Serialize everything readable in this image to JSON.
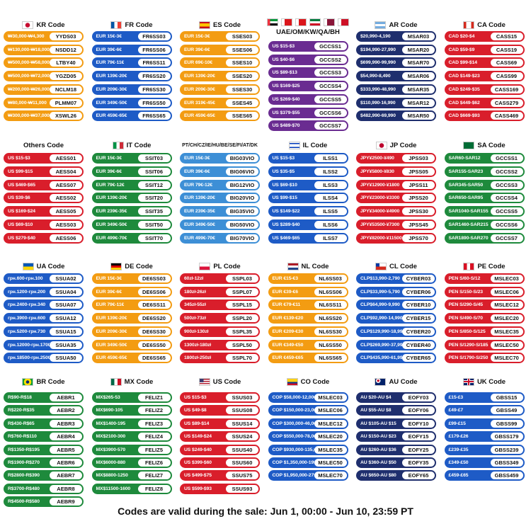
{
  "sections": [
    {
      "title": "KR Code",
      "color": "#f39c12",
      "items": [
        {
          "range": "₩30,000-₩4,300",
          "code": "YYDS03"
        },
        {
          "range": "₩130,000-₩18,000",
          "code": "NSDD12"
        },
        {
          "range": "₩500,000-₩58,000",
          "code": "LTBY40"
        },
        {
          "range": "₩500,000-₩72,000",
          "code": "YGZD05"
        },
        {
          "range": "₩200,000-₩26,000",
          "code": "NCLM18"
        },
        {
          "range": "₩80,000-₩11,000",
          "code": "PLMM07"
        },
        {
          "range": "₩300,000-₩37,000",
          "code": "XSWL26"
        }
      ]
    },
    {
      "title": "FR Code",
      "color": "#1e5bc6",
      "items": [
        {
          "range": "EUR 15€-3€",
          "code": "FR6SS03"
        },
        {
          "range": "EUR 39€-6€",
          "code": "FR6SS06"
        },
        {
          "range": "EUR 79€-11€",
          "code": "FR6SS11"
        },
        {
          "range": "EUR 139€-20€",
          "code": "FR6SS20"
        },
        {
          "range": "EUR 209€-30€",
          "code": "FR6SS30"
        },
        {
          "range": "EUR 349€-50€",
          "code": "FR6SS50"
        },
        {
          "range": "EUR 459€-65€",
          "code": "FR6SS65"
        }
      ]
    },
    {
      "title": "ES Code",
      "color": "#f39c12",
      "items": [
        {
          "range": "EUR 15€-3€",
          "code": "SSES03"
        },
        {
          "range": "EUR 39€-6€",
          "code": "SSES06"
        },
        {
          "range": "EUR 69€-10€",
          "code": "SSES10"
        },
        {
          "range": "EUR 139€-20€",
          "code": "SSES20"
        },
        {
          "range": "EUR 209€-30€",
          "code": "SSES30"
        },
        {
          "range": "EUR 319€-45€",
          "code": "SSES45"
        },
        {
          "range": "EUR 459€-65€",
          "code": "SSES65"
        }
      ]
    },
    {
      "title": "UAE/OM/KW/QA/BH",
      "color": "#6a2c91",
      "items": [
        {
          "range": "US $15-$3",
          "code": "GCCSS1"
        },
        {
          "range": "US $40-$6",
          "code": "GCCSS2"
        },
        {
          "range": "US $89-$13",
          "code": "GCCSS3"
        },
        {
          "range": "US $169-$25",
          "code": "GCCSS4"
        },
        {
          "range": "US $269-$40",
          "code": "GCCSS5"
        },
        {
          "range": "US $379-$55",
          "code": "GCCSS6"
        },
        {
          "range": "US $489-$70",
          "code": "GCCSS7"
        }
      ]
    },
    {
      "title": "AR Code",
      "color": "#1f2f6e",
      "items": [
        {
          "range": "$20,990-4,190",
          "code": "MSAR03"
        },
        {
          "range": "$194,990-27,990",
          "code": "MSAR20"
        },
        {
          "range": "$699,990-99,990",
          "code": "MSAR70"
        },
        {
          "range": "$54,990-8,490",
          "code": "MSAR06"
        },
        {
          "range": "$333,990-48,990",
          "code": "MSAR35"
        },
        {
          "range": "$110,990-16,990",
          "code": "MSAR12"
        },
        {
          "range": "$482,990-69,990",
          "code": "MSAR50"
        }
      ]
    },
    {
      "title": "CA Code",
      "color": "#d91e2b",
      "items": [
        {
          "range": "CAD $20-$4",
          "code": "CASS15"
        },
        {
          "range": "CAD $59-$9",
          "code": "CASS19"
        },
        {
          "range": "CAD $99-$14",
          "code": "CASS69"
        },
        {
          "range": "CAD $149-$23",
          "code": "CASS99"
        },
        {
          "range": "CAD $249-$35",
          "code": "CASS169"
        },
        {
          "range": "CAD $449-$62",
          "code": "CASS279"
        },
        {
          "range": "CAD $669-$93",
          "code": "CASS469"
        }
      ]
    },
    {
      "title": "Others Code",
      "color": "#d91e2b",
      "items": [
        {
          "range": "US $15-$3",
          "code": "AESS01"
        },
        {
          "range": "US $99-$15",
          "code": "AESS04"
        },
        {
          "range": "US $469-$65",
          "code": "AESS07"
        },
        {
          "range": "US $39-$6",
          "code": "AESS02"
        },
        {
          "range": "US $169-$24",
          "code": "AESS05"
        },
        {
          "range": "US $69-$10",
          "code": "AESS03"
        },
        {
          "range": "US $279-$40",
          "code": "AESS06"
        }
      ]
    },
    {
      "title": "IT Code",
      "color": "#1e8a3c",
      "items": [
        {
          "range": "EUR 15€-3€",
          "code": "SSIT03"
        },
        {
          "range": "EUR 39€-6€",
          "code": "SSIT06"
        },
        {
          "range": "EUR 79€-12€",
          "code": "SSIT12"
        },
        {
          "range": "EUR 139€-20€",
          "code": "SSIT20"
        },
        {
          "range": "EUR 239€-35€",
          "code": "SSIT35"
        },
        {
          "range": "EUR 349€-50€",
          "code": "SSIT50"
        },
        {
          "range": "EUR 499€-70€",
          "code": "SSIT70"
        }
      ]
    },
    {
      "title": "PT/CH/CZ/IE/HU/BE/SE/FI/AT/DK",
      "color": "#3d8fd6",
      "items": [
        {
          "range": "EUR 15€-3€",
          "code": "BIG03VIO"
        },
        {
          "range": "EUR 39€-6€",
          "code": "BIG06VIO"
        },
        {
          "range": "EUR 79€-12€",
          "code": "BIG12VIO"
        },
        {
          "range": "EUR 139€-20€",
          "code": "BIG20VIO"
        },
        {
          "range": "EUR 239€-35€",
          "code": "BIG35VIO"
        },
        {
          "range": "EUR 349€-50€",
          "code": "BIG50VIO"
        },
        {
          "range": "EUR 499€-70€",
          "code": "BIG70VIO"
        }
      ]
    },
    {
      "title": "IL Code",
      "color": "#1e5bc6",
      "items": [
        {
          "range": "US $15-$3",
          "code": "ILSS1"
        },
        {
          "range": "US $35-$5",
          "code": "ILSS2"
        },
        {
          "range": "US $69-$10",
          "code": "ILSS3"
        },
        {
          "range": "US $99-$15",
          "code": "ILSS4"
        },
        {
          "range": "US $149-$22",
          "code": "ILSS5"
        },
        {
          "range": "US $289-$40",
          "code": "ILSS6"
        },
        {
          "range": "US $469-$65",
          "code": "ILSS7"
        }
      ]
    },
    {
      "title": "JP Code",
      "color": "#d91e2b",
      "items": [
        {
          "range": "JPY¥2500-¥490",
          "code": "JPSS03"
        },
        {
          "range": "JPY¥5800-¥830",
          "code": "JPSS05"
        },
        {
          "range": "JPY¥12900-¥1800",
          "code": "JPSS11"
        },
        {
          "range": "JPY¥23000-¥3300",
          "code": "JPSS20"
        },
        {
          "range": "JPY¥34000-¥4900",
          "code": "JPSS30"
        },
        {
          "range": "JPY¥53500-¥7300",
          "code": "JPSS45"
        },
        {
          "range": "JPY¥82000-¥11500",
          "code": "JPSS70"
        }
      ]
    },
    {
      "title": "SA Code",
      "color": "#1e8a3c",
      "items": [
        {
          "range": "SAR60-SAR12",
          "code": "GCCSS1"
        },
        {
          "range": "SAR155-SAR23",
          "code": "GCCSS2"
        },
        {
          "range": "SAR345-SAR50",
          "code": "GCCSS3"
        },
        {
          "range": "SAR650-SAR95",
          "code": "GCCSS4"
        },
        {
          "range": "SAR1040-SAR155",
          "code": "GCCSS5"
        },
        {
          "range": "SAR1460-SAR215",
          "code": "GCCSS6"
        },
        {
          "range": "SAR1890-SAR270",
          "code": "GCCSS7"
        }
      ]
    },
    {
      "title": "UA Code",
      "color": "#1e5bc6",
      "items": [
        {
          "range": "грн.600-грн.100",
          "code": "SSUA02"
        },
        {
          "range": "грн.1200-грн.200",
          "code": "SSUA04"
        },
        {
          "range": "грн.2400-грн.340",
          "code": "SSUA07"
        },
        {
          "range": "грн.3900-грн.600",
          "code": "SSUA12"
        },
        {
          "range": "грн.5200-грн.730",
          "code": "SSUA15"
        },
        {
          "range": "грн.12000-грн.1700",
          "code": "SSUA35"
        },
        {
          "range": "грн.18500-грн.2500",
          "code": "SSUA50"
        }
      ]
    },
    {
      "title": "DE Code",
      "color": "#f39c12",
      "items": [
        {
          "range": "EUR 15€-3€",
          "code": "DE6SS03"
        },
        {
          "range": "EUR 39€-6€",
          "code": "DE6SS06"
        },
        {
          "range": "EUR 79€-11€",
          "code": "DE6SS11"
        },
        {
          "range": "EUR 139€-20€",
          "code": "DE6SS20"
        },
        {
          "range": "EUR 209€-30€",
          "code": "DE6SS30"
        },
        {
          "range": "EUR 349€-50€",
          "code": "DE6SS50"
        },
        {
          "range": "EUR 459€-65€",
          "code": "DE6SS65"
        }
      ]
    },
    {
      "title": "PL Code",
      "color": "#d91e2b",
      "items": [
        {
          "range": "60zł-12zł",
          "code": "SSPL03"
        },
        {
          "range": "180zł-26zł",
          "code": "SSPL07"
        },
        {
          "range": "345zł-55zł",
          "code": "SSPL15"
        },
        {
          "range": "500zł-73zł",
          "code": "SSPL20"
        },
        {
          "range": "900zł-130zł",
          "code": "SSPL35"
        },
        {
          "range": "1300zł-180zł",
          "code": "SSPL50"
        },
        {
          "range": "1800zł-250zł",
          "code": "SSPL70"
        }
      ]
    },
    {
      "title": "NL Code",
      "color": "#f39c12",
      "items": [
        {
          "range": "EUR €15-€3",
          "code": "NL6SS03"
        },
        {
          "range": "EUR €39-€6",
          "code": "NL6SS06"
        },
        {
          "range": "EUR €79-€11",
          "code": "NL6SS11"
        },
        {
          "range": "EUR €139-€20",
          "code": "NL6SS20"
        },
        {
          "range": "EUR €209-€30",
          "code": "NL6SS30"
        },
        {
          "range": "EUR €349-€50",
          "code": "NL6SS50"
        },
        {
          "range": "EUR €459-€65",
          "code": "NL6SS65"
        }
      ]
    },
    {
      "title": "CL Code",
      "color": "#1e5bc6",
      "items": [
        {
          "range": "CLP$13,990-2,790",
          "code": "CYBER03"
        },
        {
          "range": "CLP$33,990-5,790",
          "code": "CYBER06"
        },
        {
          "range": "CLP$64,990-9,990",
          "code": "CYBER10"
        },
        {
          "range": "CLP$92,990-14,990",
          "code": "CYBER15"
        },
        {
          "range": "CLP$129,990-18,990",
          "code": "CYBER20"
        },
        {
          "range": "CLP$269,990-37,990",
          "code": "CYBER40"
        },
        {
          "range": "CLP$435,990-61,990",
          "code": "CYBER65"
        }
      ]
    },
    {
      "title": "PE Code",
      "color": "#d91e2b",
      "items": [
        {
          "range": "PEN S/60-S/12",
          "code": "MSLEC03"
        },
        {
          "range": "PEN S/150-S/23",
          "code": "MSLEC06"
        },
        {
          "range": "PEN S/290-S/45",
          "code": "MSLEC12"
        },
        {
          "range": "PEN S/490-S/70",
          "code": "MSLEC20"
        },
        {
          "range": "PEN S/850-S/125",
          "code": "MSLEC35"
        },
        {
          "range": "PEN S/1290-S/185",
          "code": "MSLEC50"
        },
        {
          "range": "PEN S/1790-S/250",
          "code": "MSLEC70"
        }
      ]
    },
    {
      "title": "BR Code",
      "color": "#1e8a3c",
      "items": [
        {
          "range": "R$90-R$18",
          "code": "AEBR1"
        },
        {
          "range": "R$220-R$35",
          "code": "AEBR2"
        },
        {
          "range": "R$430-R$65",
          "code": "AEBR3"
        },
        {
          "range": "R$760-R$110",
          "code": "AEBR4"
        },
        {
          "range": "R$1350-R$195",
          "code": "AEBR5"
        },
        {
          "range": "R$1900-R$270",
          "code": "AEBR6"
        },
        {
          "range": "R$2800-R$390",
          "code": "AEBR7"
        },
        {
          "range": "R$3700-R$480",
          "code": "AEBR8"
        },
        {
          "range": "R$4500-R$580",
          "code": "AEBR9"
        }
      ]
    },
    {
      "title": "MX Code",
      "color": "#1e8a3c",
      "items": [
        {
          "range": "MX$265-53",
          "code": "FELIZ1"
        },
        {
          "range": "MX$690-105",
          "code": "FELIZ2"
        },
        {
          "range": "MX$1400-195",
          "code": "FELIZ3"
        },
        {
          "range": "MX$2100-300",
          "code": "FELIZ4"
        },
        {
          "range": "MX$3900-570",
          "code": "FELIZ5"
        },
        {
          "range": "MX$6000-880",
          "code": "FELIZ6"
        },
        {
          "range": "MX$8800-1250",
          "code": "FELIZ7"
        },
        {
          "range": "MX$11500-1600",
          "code": "FELIZ8"
        }
      ]
    },
    {
      "title": "US Code",
      "color": "#d91e2b",
      "items": [
        {
          "range": "US $15-$3",
          "code": "SSUS03"
        },
        {
          "range": "US $49-$8",
          "code": "SSUS08"
        },
        {
          "range": "US $89-$14",
          "code": "SSUS14"
        },
        {
          "range": "US $149-$24",
          "code": "SSUS24"
        },
        {
          "range": "US $249-$40",
          "code": "SSUS40"
        },
        {
          "range": "US $399-$60",
          "code": "SSUS60"
        },
        {
          "range": "US $499-$75",
          "code": "SSUS75"
        },
        {
          "range": "US $599-$93",
          "code": "SSUS93"
        }
      ]
    },
    {
      "title": "CO Code",
      "color": "#1e5bc6",
      "items": [
        {
          "range": "COP $58,000-12,000",
          "code": "MSLEC03"
        },
        {
          "range": "COP $150,000-23,000",
          "code": "MSLEC06"
        },
        {
          "range": "COP $300,000-46,000",
          "code": "MSLEC12"
        },
        {
          "range": "COP $550,000-78,000",
          "code": "MSLEC20"
        },
        {
          "range": "COP $930,000-135,000",
          "code": "MSLEC35"
        },
        {
          "range": "COP $1,350,000-195,000",
          "code": "MSLEC50"
        },
        {
          "range": "COP $1,950,000-275,000",
          "code": "MSLEC70"
        }
      ]
    },
    {
      "title": "AU Code",
      "color": "#1f2f6e",
      "items": [
        {
          "range": "AU $20-AU $4",
          "code": "EOFY03"
        },
        {
          "range": "AU $55-AU $8",
          "code": "EOFY06"
        },
        {
          "range": "AU $105-AU $15",
          "code": "EOFY10"
        },
        {
          "range": "AU $150-AU $23",
          "code": "EOFY15"
        },
        {
          "range": "AU $260-AU $36",
          "code": "EOFY25"
        },
        {
          "range": "AU $360-AU $50",
          "code": "EOFY35"
        },
        {
          "range": "AU $650-AU $80",
          "code": "EOFY65"
        }
      ]
    },
    {
      "title": "UK Code",
      "color": "#1e5bc6",
      "items": [
        {
          "range": "£15-£3",
          "code": "GBSS15"
        },
        {
          "range": "£49-£7",
          "code": "GBSS49"
        },
        {
          "range": "£99-£15",
          "code": "GBSS99"
        },
        {
          "range": "£179-£26",
          "code": "GBSS179"
        },
        {
          "range": "£239-£35",
          "code": "GBSS239"
        },
        {
          "range": "£349-£50",
          "code": "GBSS349"
        },
        {
          "range": "£459-£65",
          "code": "GBSS459"
        }
      ]
    }
  ],
  "footer": "Codes are valid during the sale: Jun 1, 00:00 - Jun 10, 23:59 PT"
}
